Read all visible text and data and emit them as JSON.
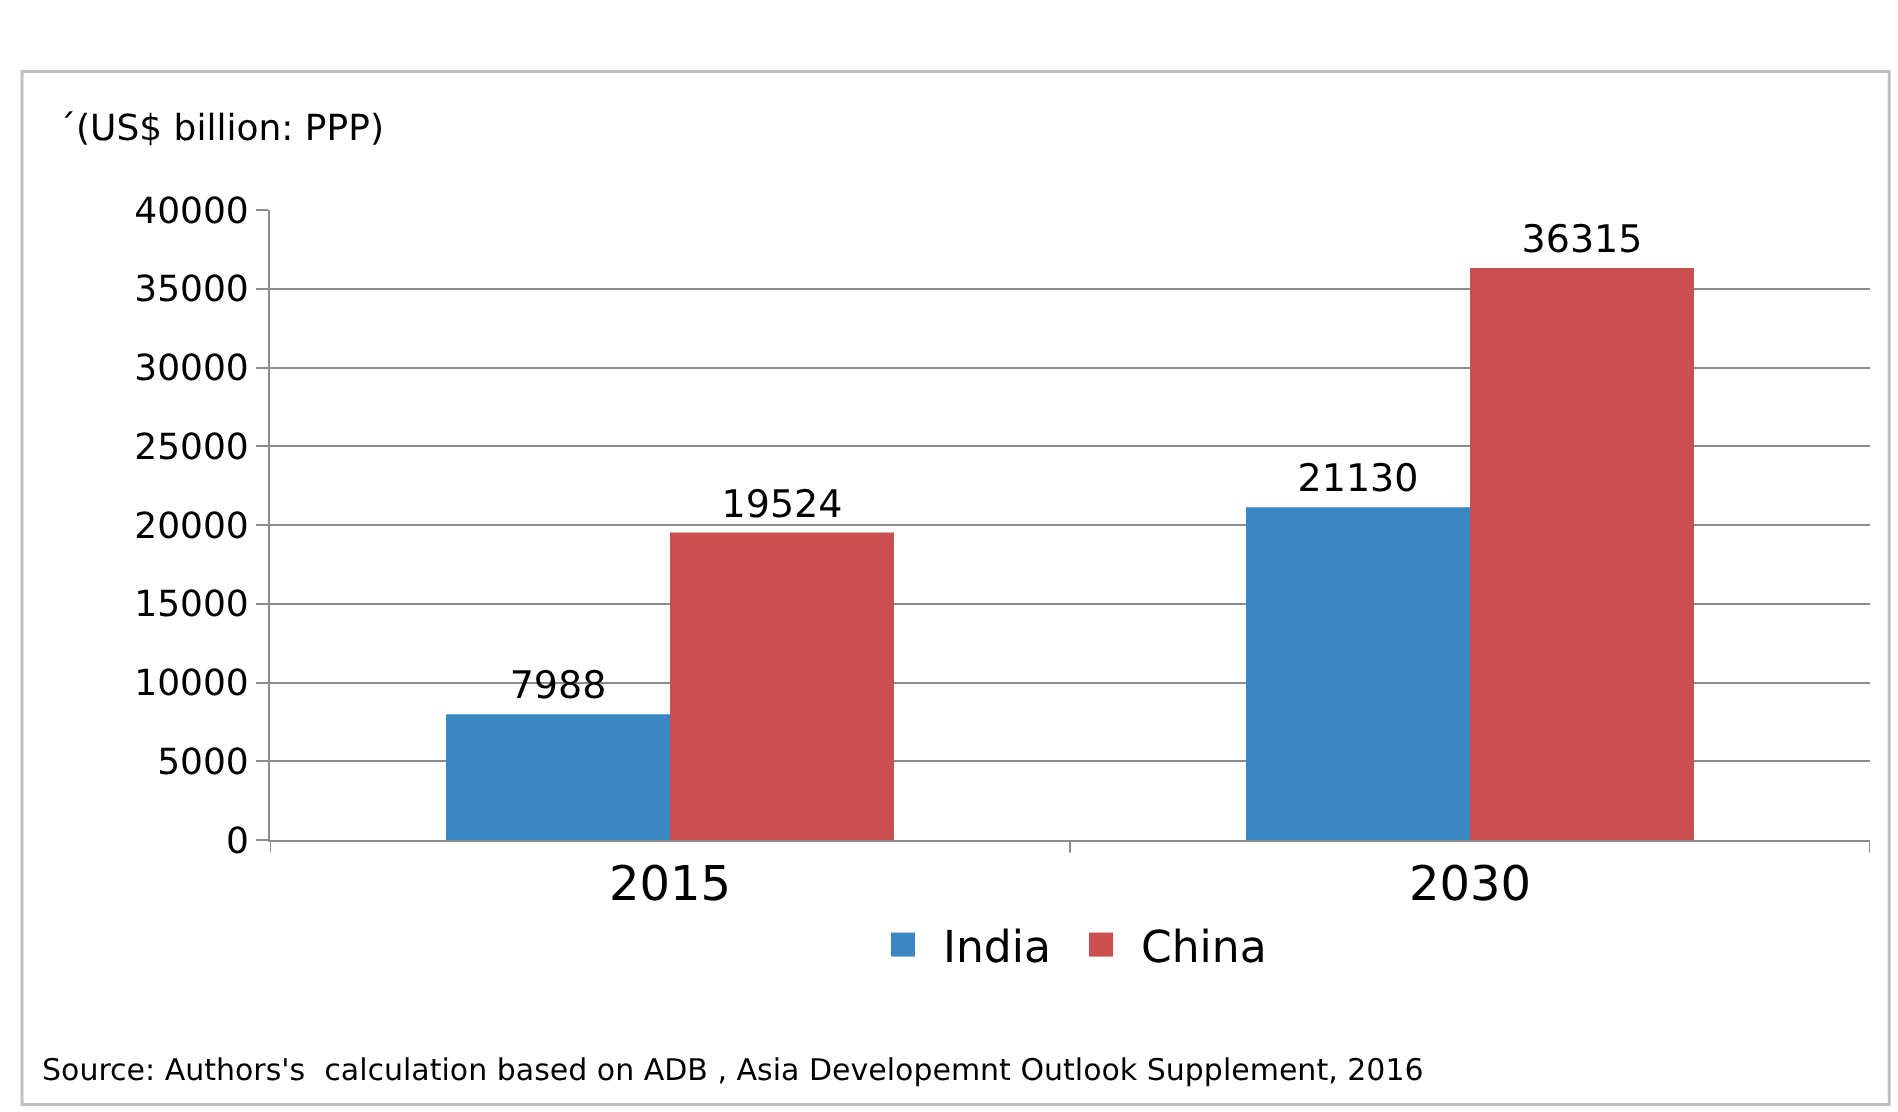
{
  "chart_data": {
    "type": "bar",
    "ylabel": "´(US$ billion: PPP)",
    "categories": [
      "2015",
      "2030"
    ],
    "series": [
      {
        "name": "India",
        "color": "#3a87c4",
        "values": [
          7988,
          21130
        ]
      },
      {
        "name": "China",
        "color": "#c9504f",
        "values": [
          19524,
          36315
        ]
      }
    ],
    "ylim": [
      0,
      40000
    ],
    "yticks": [
      0,
      5000,
      10000,
      15000,
      20000,
      25000,
      30000,
      35000,
      40000
    ],
    "grid": "y",
    "legend": "bottom",
    "data_labels": true,
    "annotations": [
      "Source: Authors's  calculation based on ADB , Asia Developemnt Outlook Supplement, 2016"
    ]
  }
}
